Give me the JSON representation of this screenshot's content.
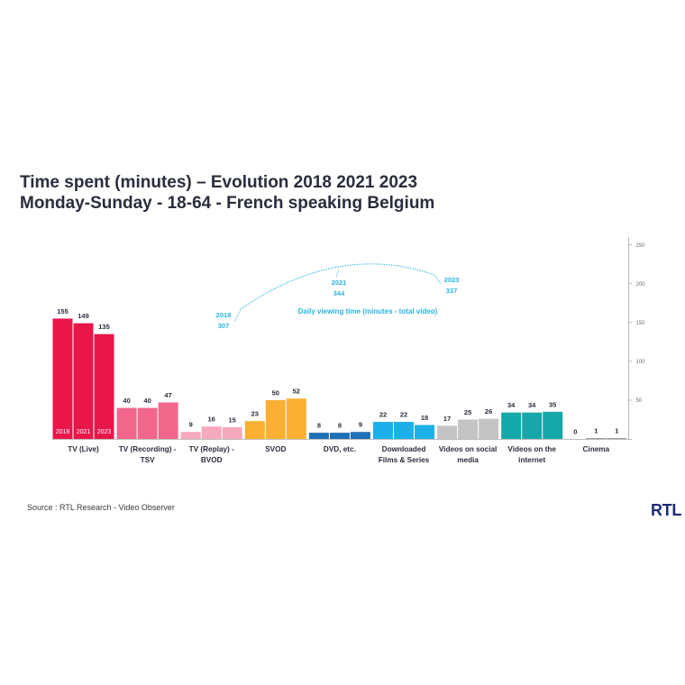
{
  "chart_data": {
    "type": "bar",
    "title": "Time spent (minutes) – Evolution 2018 2021 2023",
    "subtitle": "Monday-Sunday - 18-64 - French speaking Belgium",
    "xlabel": "",
    "ylabel": "",
    "categories": [
      "TV (Live)",
      "TV (Recording) -\nTSV",
      "TV (Replay) -\nBVOD",
      "SVOD",
      "DVD, etc.",
      "Downloaded\nFilms & Series",
      "Videos on social\nmedia",
      "Videos on the\ninternet",
      "Cinema"
    ],
    "series": [
      {
        "name": "2018",
        "values": [
          155,
          40,
          9,
          23,
          8,
          22,
          17,
          34,
          0
        ]
      },
      {
        "name": "2021",
        "values": [
          149,
          40,
          16,
          50,
          8,
          22,
          25,
          34,
          1
        ]
      },
      {
        "name": "2023",
        "values": [
          135,
          47,
          15,
          52,
          9,
          18,
          26,
          35,
          1
        ]
      }
    ],
    "category_colors": [
      "#E9164A",
      "#F0678B",
      "#F6A8BD",
      "#FBB033",
      "#1F6FB7",
      "#1DAFE8",
      "#C4C4C4",
      "#16A8A8",
      "#8A8A8A"
    ],
    "y_axis": {
      "position": "right",
      "ylim": [
        0,
        260
      ],
      "ticks": [
        50,
        100,
        150,
        200,
        250
      ]
    },
    "grid": false,
    "legend": "none",
    "line": {
      "type": "line",
      "name": "Daily viewing time (minutes - total video)",
      "x": [
        "2018",
        "2021",
        "2023"
      ],
      "values": [
        307,
        344,
        337
      ],
      "style": "dotted",
      "color": "#2BB3E0"
    }
  },
  "footer": {
    "source": "Source : RTL Research - Video Observer",
    "logo": "RTL"
  },
  "colors": {
    "text": "#2A2D3C",
    "logo": "#1E2A78",
    "axis": "#A8A8A8",
    "tick_label": "#6E6E6E",
    "value_label": "#2A2D3C",
    "in_bar_label": "#FFFFFF"
  }
}
